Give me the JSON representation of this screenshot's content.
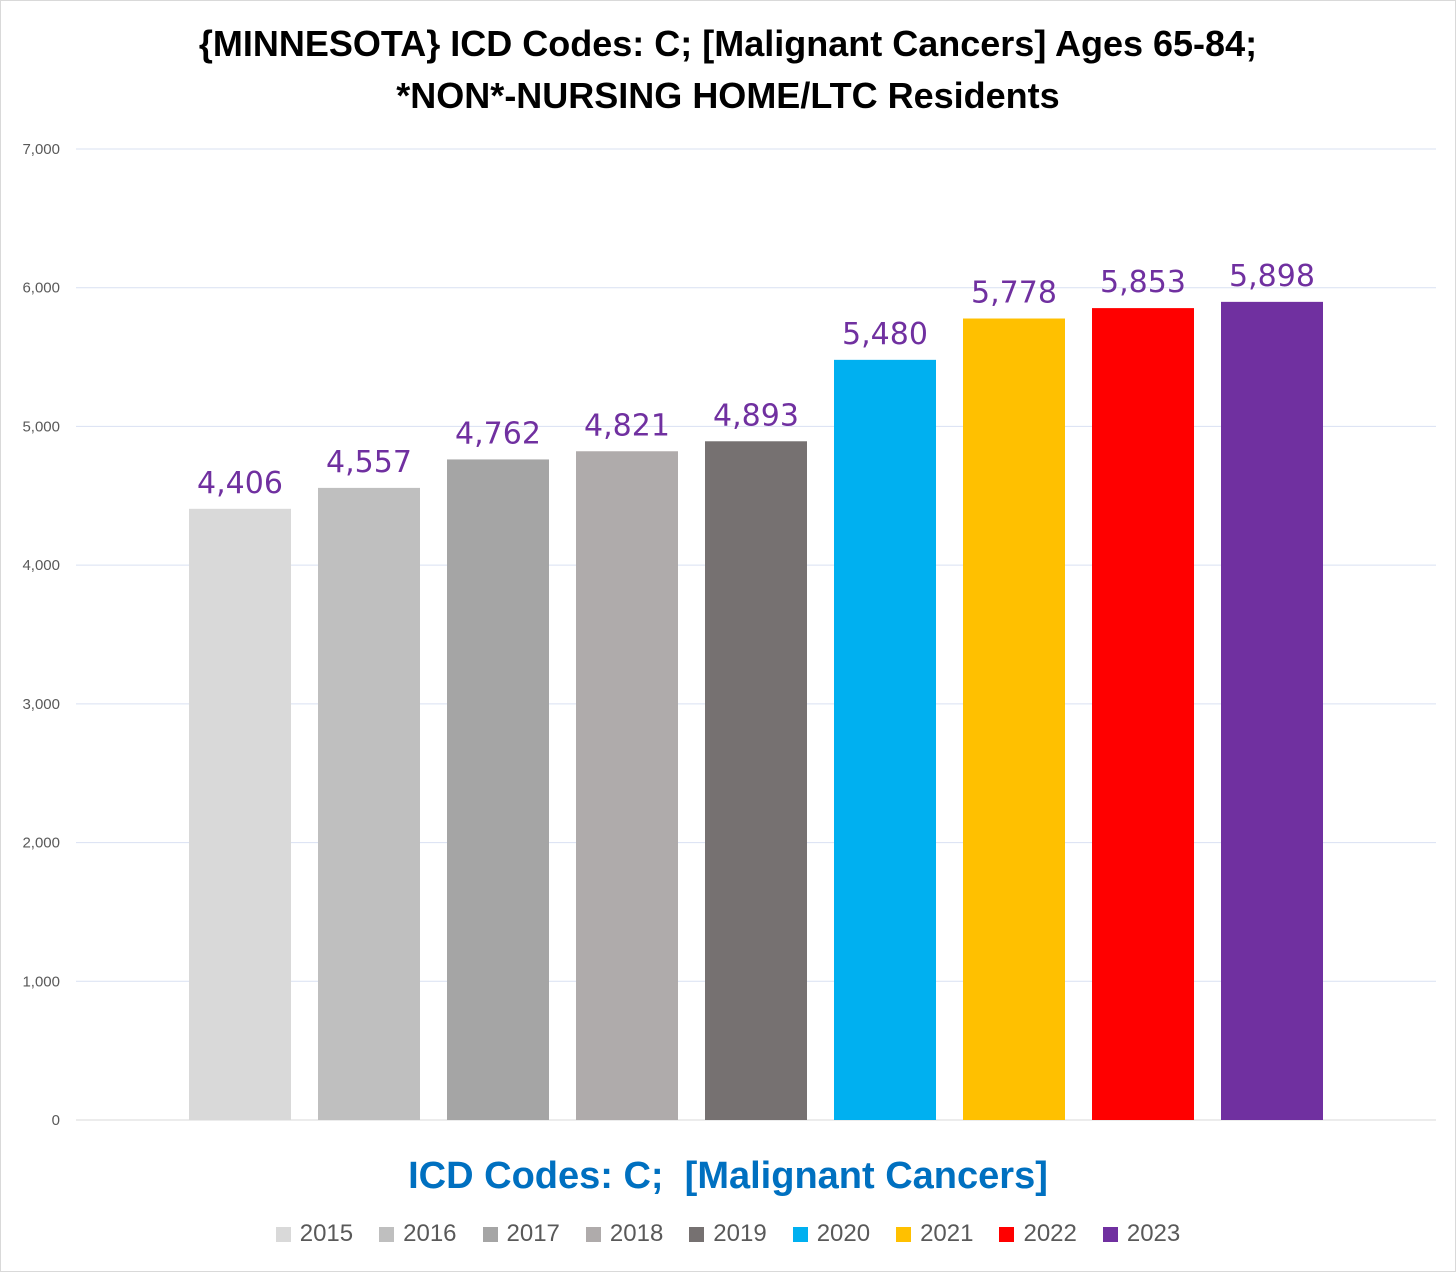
{
  "chart_data": {
    "type": "bar",
    "title_lines": [
      "{MINNESOTA}  ICD Codes: C;  [Malignant Cancers] Ages 65-84;",
      "*NON*-NURSING HOME/LTC Residents"
    ],
    "xlabel": "ICD Codes: C;  [Malignant Cancers]",
    "ylabel": "",
    "ylim": [
      0,
      7000
    ],
    "yticks": [
      0,
      1000,
      2000,
      3000,
      4000,
      5000,
      6000,
      7000
    ],
    "ytick_labels": [
      "0",
      "1,000",
      "2,000",
      "3,000",
      "4,000",
      "5,000",
      "6,000",
      "7,000"
    ],
    "grid": true,
    "legend_position": "bottom",
    "series": [
      {
        "name": "2015",
        "value": 4406,
        "label": "4,406",
        "color": "#d9d9d9"
      },
      {
        "name": "2016",
        "value": 4557,
        "label": "4,557",
        "color": "#bfbfbf"
      },
      {
        "name": "2017",
        "value": 4762,
        "label": "4,762",
        "color": "#a5a5a5"
      },
      {
        "name": "2018",
        "value": 4821,
        "label": "4,821",
        "color": "#afabab"
      },
      {
        "name": "2019",
        "value": 4893,
        "label": "4,893",
        "color": "#767171"
      },
      {
        "name": "2020",
        "value": 5480,
        "label": "5,480",
        "color": "#00b0f0"
      },
      {
        "name": "2021",
        "value": 5778,
        "label": "5,778",
        "color": "#ffc000"
      },
      {
        "name": "2022",
        "value": 5853,
        "label": "5,853",
        "color": "#ff0000"
      },
      {
        "name": "2023",
        "value": 5898,
        "label": "5,898",
        "color": "#7030a0"
      }
    ],
    "gridline_color": "#d9e1f2",
    "axis_color": "#d9d9d9",
    "data_label_color": "#7030a0",
    "xlabel_color": "#0070c0"
  }
}
